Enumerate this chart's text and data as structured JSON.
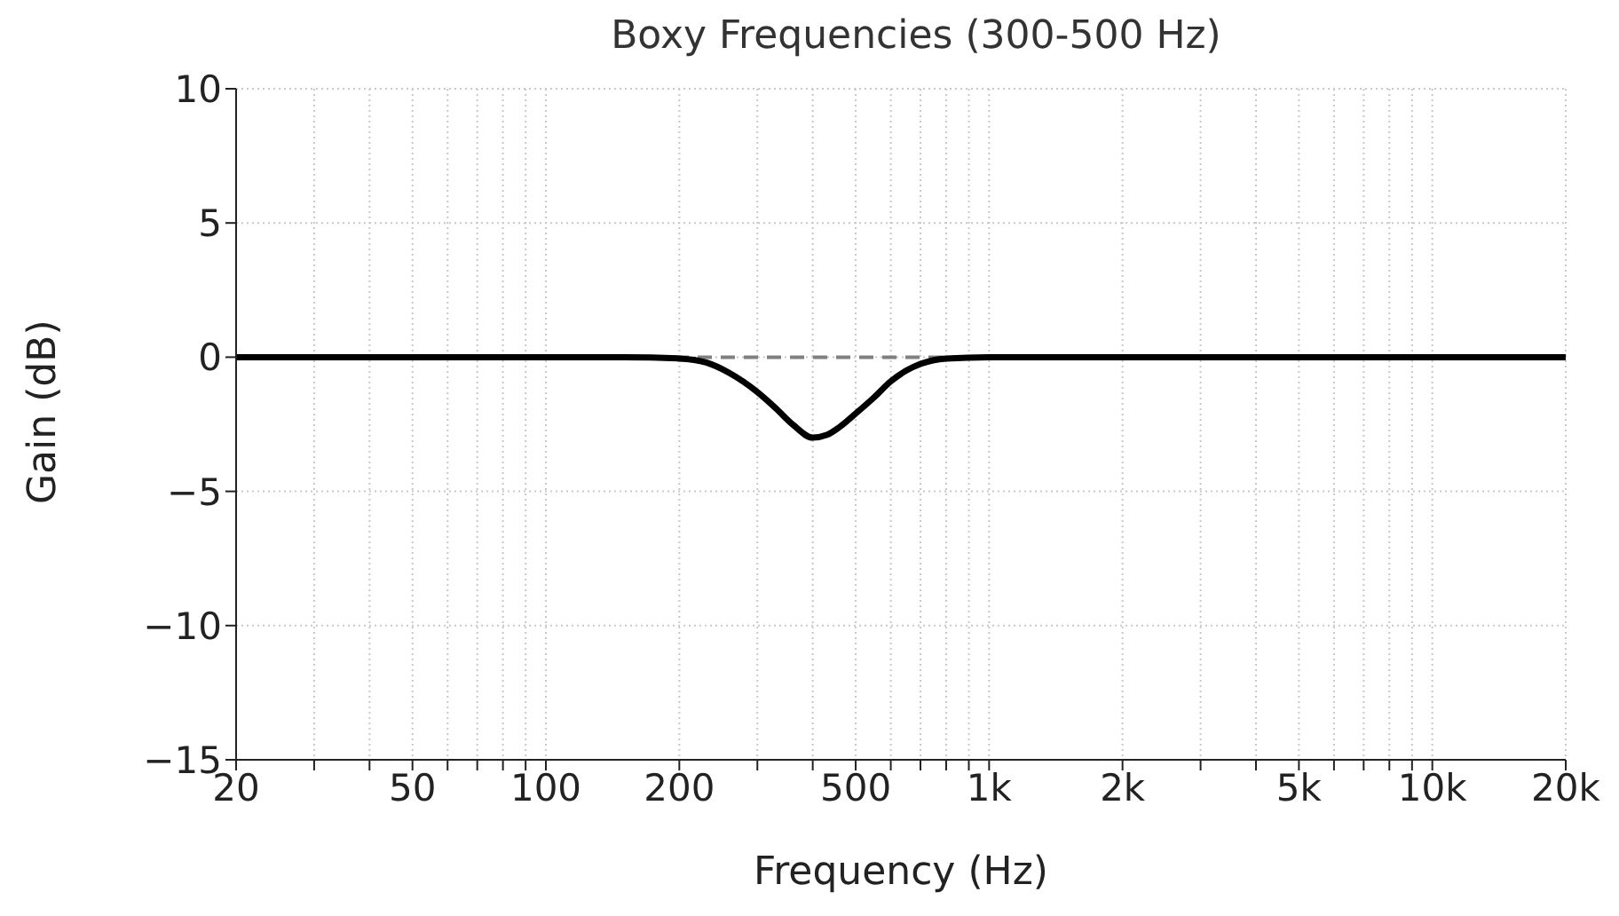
{
  "chart_data": {
    "type": "line",
    "title": "Boxy Frequencies (300-500 Hz)",
    "xlabel": "Frequency (Hz)",
    "ylabel": "Gain (dB)",
    "log": "x",
    "x": [
      20,
      100,
      150,
      200,
      230,
      260,
      300,
      330,
      360,
      400,
      430,
      460,
      500,
      550,
      600,
      650,
      700,
      800,
      1000,
      20000
    ],
    "series": [
      {
        "color": "#000000",
        "values": [
          0,
          0,
          0,
          -0.05,
          -0.2,
          -0.6,
          -1.3,
          -1.9,
          -2.5,
          -3,
          -2.9,
          -2.6,
          -2.1,
          -1.5,
          -0.9,
          -0.5,
          -0.25,
          -0.05,
          0,
          0
        ]
      }
    ],
    "xlim": [
      20,
      20000
    ],
    "ylim": [
      -15,
      10
    ],
    "yticks": [
      -15,
      -10,
      -5,
      0,
      5,
      10
    ],
    "xticks": [
      20,
      {
        "value": 30,
        "label": null
      },
      {
        "value": 40,
        "label": null
      },
      50,
      {
        "value": 60,
        "label": null
      },
      {
        "value": 70,
        "label": null
      },
      {
        "value": 80,
        "label": null
      },
      {
        "value": 90,
        "label": null
      },
      100,
      200,
      {
        "value": 300,
        "label": null
      },
      {
        "value": 400,
        "label": null
      },
      500,
      {
        "value": 600,
        "label": null
      },
      {
        "value": 700,
        "label": null
      },
      {
        "value": 800,
        "label": null
      },
      {
        "value": 900,
        "label": null
      },
      {
        "value": 1000,
        "label": "1k"
      },
      {
        "value": 2000,
        "label": "2k"
      },
      {
        "value": 3000,
        "label": null
      },
      {
        "value": 4000,
        "label": null
      },
      {
        "value": 5000,
        "label": "5k"
      },
      {
        "value": 6000,
        "label": null
      },
      {
        "value": 7000,
        "label": null
      },
      {
        "value": 8000,
        "label": null
      },
      {
        "value": 9000,
        "label": null
      },
      {
        "value": 10000,
        "label": "10k"
      },
      {
        "value": 20000,
        "label": "20k"
      }
    ],
    "ref_lines": [
      {
        "axis": "y",
        "value": 0,
        "color": "#808080",
        "line_style": "dashed"
      }
    ],
    "grid": true,
    "marker": "none",
    "line_style": "solid",
    "legend": false
  }
}
